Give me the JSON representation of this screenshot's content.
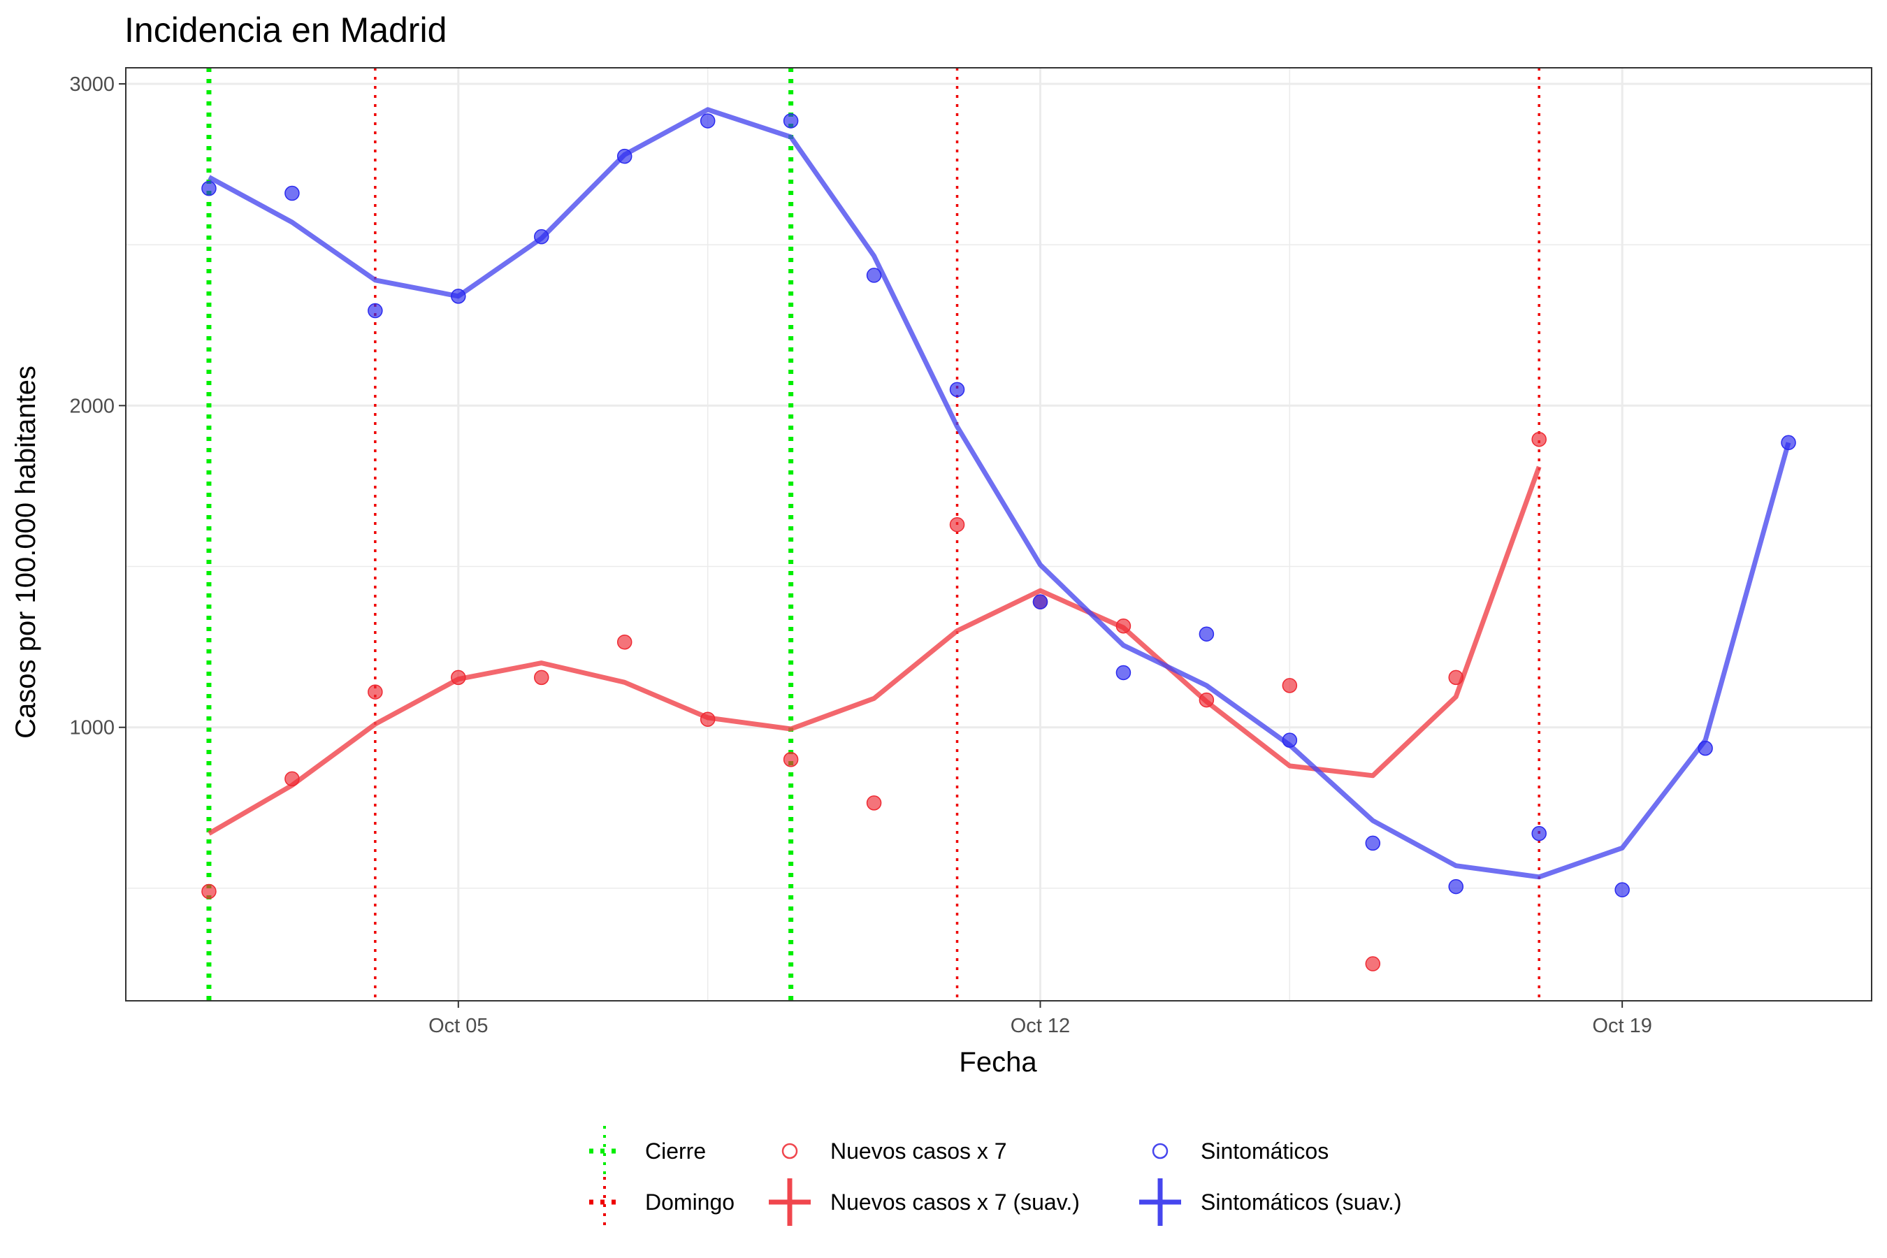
{
  "chart_data": {
    "type": "line",
    "title": "Incidencia en Madrid",
    "xlabel": "Fecha",
    "ylabel": "Casos por 100.000 habitantes",
    "x_range": [
      "2020-10-01",
      "2020-10-22"
    ],
    "ylim": [
      150,
      3050
    ],
    "y_ticks": [
      1000,
      2000,
      3000
    ],
    "y_tick_labels": [
      "1000",
      "2000",
      "3000"
    ],
    "x_ticks": [
      "2020-10-05",
      "2020-10-12",
      "2020-10-19"
    ],
    "x_tick_labels": [
      "Oct 05",
      "Oct 12",
      "Oct 19"
    ],
    "grid": true,
    "legend_position": "bottom",
    "colors": {
      "cierre": "#00ee00",
      "domingo": "#ee0000",
      "nuevos": "#f0464d",
      "sintomaticos": "#4646ee"
    },
    "vlines": {
      "cierre": [
        "2020-10-02",
        "2020-10-09"
      ],
      "domingo": [
        "2020-10-04",
        "2020-10-11",
        "2020-10-18"
      ]
    },
    "points": {
      "nuevos": {
        "x": [
          "2020-10-02",
          "2020-10-03",
          "2020-10-04",
          "2020-10-05",
          "2020-10-06",
          "2020-10-07",
          "2020-10-08",
          "2020-10-09",
          "2020-10-10",
          "2020-10-11",
          "2020-10-12",
          "2020-10-13",
          "2020-10-14",
          "2020-10-15",
          "2020-10-16",
          "2020-10-17",
          "2020-10-18"
        ],
        "y": [
          490,
          840,
          1110,
          1155,
          1155,
          1265,
          1025,
          900,
          765,
          1630,
          1390,
          1315,
          1085,
          1130,
          265,
          1155,
          1895
        ]
      },
      "sintomaticos": {
        "x": [
          "2020-10-02",
          "2020-10-03",
          "2020-10-04",
          "2020-10-05",
          "2020-10-06",
          "2020-10-07",
          "2020-10-08",
          "2020-10-09",
          "2020-10-10",
          "2020-10-11",
          "2020-10-12",
          "2020-10-13",
          "2020-10-14",
          "2020-10-15",
          "2020-10-16",
          "2020-10-17",
          "2020-10-18",
          "2020-10-19",
          "2020-10-20",
          "2020-10-21"
        ],
        "y": [
          2675,
          2660,
          2295,
          2340,
          2525,
          2775,
          2885,
          2885,
          2405,
          2050,
          1390,
          1170,
          1290,
          960,
          640,
          505,
          670,
          495,
          935,
          1885
        ]
      }
    },
    "series": [
      {
        "name": "Nuevos casos x 7 (suav.)",
        "x": [
          "2020-10-02",
          "2020-10-03",
          "2020-10-04",
          "2020-10-05",
          "2020-10-06",
          "2020-10-07",
          "2020-10-08",
          "2020-10-09",
          "2020-10-10",
          "2020-10-11",
          "2020-10-12",
          "2020-10-13",
          "2020-10-14",
          "2020-10-15",
          "2020-10-16",
          "2020-10-17",
          "2020-10-18"
        ],
        "values": [
          670,
          820,
          1010,
          1150,
          1200,
          1140,
          1030,
          995,
          1090,
          1300,
          1425,
          1310,
          1080,
          880,
          850,
          1095,
          1810
        ]
      },
      {
        "name": "Sintomáticos (suav.)",
        "x": [
          "2020-10-02",
          "2020-10-03",
          "2020-10-04",
          "2020-10-05",
          "2020-10-06",
          "2020-10-07",
          "2020-10-08",
          "2020-10-09",
          "2020-10-10",
          "2020-10-11",
          "2020-10-12",
          "2020-10-13",
          "2020-10-14",
          "2020-10-15",
          "2020-10-16",
          "2020-10-17",
          "2020-10-18",
          "2020-10-19",
          "2020-10-20",
          "2020-10-21"
        ],
        "values": [
          2710,
          2570,
          2390,
          2340,
          2520,
          2780,
          2920,
          2835,
          2465,
          1935,
          1505,
          1255,
          1130,
          945,
          710,
          570,
          535,
          625,
          960,
          1885
        ]
      }
    ],
    "legend": [
      {
        "key": "cierre",
        "label": "Cierre",
        "type": "vline-dotted"
      },
      {
        "key": "nuevos",
        "label": "Nuevos casos x 7",
        "type": "point"
      },
      {
        "key": "sintomaticos",
        "label": "Sintomáticos",
        "type": "point"
      },
      {
        "key": "domingo",
        "label": "Domingo",
        "type": "vline-dotted"
      },
      {
        "key": "nuevos",
        "label": "Nuevos casos x 7 (suav.)",
        "type": "line"
      },
      {
        "key": "sintomaticos",
        "label": "Sintomáticos (suav.)",
        "type": "line"
      }
    ]
  }
}
